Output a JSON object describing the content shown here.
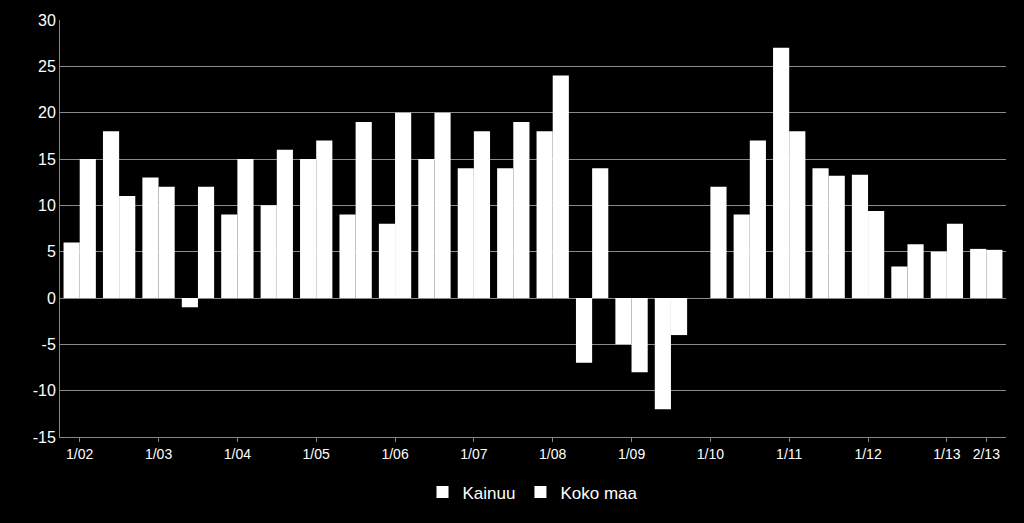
{
  "chart_data": {
    "type": "bar",
    "categories": [
      "1/02",
      null,
      "1/03",
      null,
      "1/04",
      null,
      "1/05",
      null,
      "1/06",
      null,
      "1/07",
      null,
      "1/08",
      null,
      "1/09",
      null,
      "1/10",
      null,
      "1/11",
      null,
      "1/12",
      null,
      "1/13",
      "2/13"
    ],
    "series": [
      {
        "name": "Kainuu",
        "color": "#ffffff",
        "values": [
          6,
          18,
          13,
          -1,
          9,
          10,
          15,
          9,
          8,
          15,
          14,
          14,
          18,
          -7,
          -5,
          -12,
          0,
          9,
          27,
          14,
          13.3,
          3.4,
          5,
          5.3
        ]
      },
      {
        "name": "Koko maa",
        "color": "#ffffff",
        "values": [
          15,
          11,
          12,
          12,
          15,
          16,
          17,
          19,
          20,
          20,
          18,
          19,
          24,
          14,
          -8,
          -4,
          12,
          17,
          18,
          13.2,
          9.4,
          5.8,
          8,
          5.2
        ]
      }
    ],
    "ylim": [
      -15,
      30
    ],
    "yticks": [
      -15,
      -10,
      -5,
      0,
      5,
      10,
      15,
      20,
      25,
      30
    ],
    "grid": true,
    "legend": "bottom"
  }
}
